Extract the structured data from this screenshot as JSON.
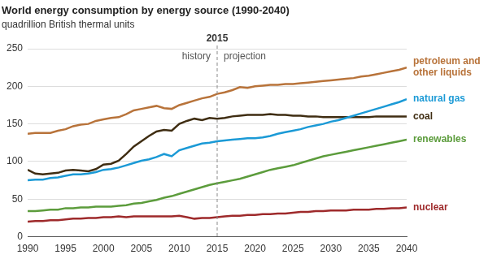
{
  "chart_data": {
    "type": "line",
    "title": "World energy consumption by energy source (1990-2040)",
    "subtitle": "quadrillion British thermal units",
    "x": [
      1990,
      1991,
      1992,
      1993,
      1994,
      1995,
      1996,
      1997,
      1998,
      1999,
      2000,
      2001,
      2002,
      2003,
      2004,
      2005,
      2006,
      2007,
      2008,
      2009,
      2010,
      2011,
      2012,
      2013,
      2014,
      2015,
      2016,
      2017,
      2018,
      2019,
      2020,
      2021,
      2022,
      2023,
      2024,
      2025,
      2026,
      2027,
      2028,
      2029,
      2030,
      2031,
      2032,
      2033,
      2034,
      2035,
      2036,
      2037,
      2038,
      2039,
      2040
    ],
    "series": [
      {
        "name": "petroleum and other liquids",
        "color": "#b8733a",
        "values": [
          137,
          138,
          138,
          138,
          141,
          143,
          147,
          149,
          150,
          154,
          156,
          158,
          159,
          163,
          168,
          170,
          172,
          174,
          171,
          170,
          175,
          178,
          181,
          184,
          186,
          190,
          192,
          195,
          199,
          198,
          200,
          201,
          202,
          202,
          203,
          203,
          204,
          205,
          206,
          207,
          208,
          209,
          210,
          211,
          213,
          214,
          216,
          218,
          220,
          222,
          225
        ]
      },
      {
        "name": "natural gas",
        "color": "#1b9ad6",
        "values": [
          75,
          76,
          76,
          78,
          79,
          81,
          83,
          83,
          84,
          86,
          89,
          90,
          92,
          95,
          98,
          101,
          103,
          106,
          110,
          107,
          115,
          118,
          121,
          124,
          125,
          127,
          128,
          129,
          130,
          131,
          131,
          132,
          134,
          137,
          139,
          141,
          143,
          146,
          148,
          150,
          153,
          155,
          158,
          161,
          164,
          167,
          170,
          173,
          176,
          179,
          183
        ]
      },
      {
        "name": "coal",
        "color": "#3f2d12",
        "values": [
          89,
          84,
          83,
          84,
          85,
          88,
          89,
          88,
          87,
          90,
          96,
          97,
          101,
          110,
          120,
          127,
          134,
          140,
          142,
          141,
          150,
          154,
          157,
          155,
          158,
          157,
          158,
          160,
          161,
          162,
          162,
          162,
          163,
          162,
          162,
          161,
          161,
          160,
          160,
          159,
          159,
          159,
          159,
          159,
          159,
          159,
          160,
          160,
          160,
          160,
          160
        ]
      },
      {
        "name": "renewables",
        "color": "#5c9c3c",
        "values": [
          34,
          34,
          35,
          36,
          36,
          38,
          38,
          39,
          39,
          40,
          40,
          40,
          41,
          42,
          44,
          45,
          47,
          49,
          52,
          54,
          57,
          60,
          63,
          66,
          69,
          71,
          73,
          75,
          77,
          80,
          83,
          86,
          89,
          91,
          93,
          95,
          98,
          101,
          104,
          107,
          109,
          111,
          113,
          115,
          117,
          119,
          121,
          123,
          125,
          127,
          129
        ]
      },
      {
        "name": "nuclear",
        "color": "#9e2a2b",
        "values": [
          20,
          21,
          21,
          22,
          22,
          23,
          24,
          24,
          25,
          25,
          26,
          26,
          27,
          26,
          27,
          27,
          27,
          27,
          27,
          27,
          28,
          26,
          24,
          25,
          25,
          26,
          27,
          28,
          28,
          29,
          29,
          30,
          30,
          31,
          31,
          32,
          33,
          33,
          34,
          34,
          35,
          35,
          35,
          36,
          36,
          36,
          37,
          37,
          38,
          38,
          39
        ]
      }
    ],
    "annotations": [
      {
        "x": 2015,
        "label": "2015",
        "before": "history",
        "after": "projection"
      }
    ],
    "xlim": [
      1990,
      2040
    ],
    "xticks": [
      1990,
      1995,
      2000,
      2005,
      2010,
      2015,
      2020,
      2025,
      2030,
      2035,
      2040
    ],
    "ylim": [
      0,
      250
    ],
    "yticks": [
      0,
      50,
      100,
      150,
      200,
      250
    ],
    "grid": true
  }
}
